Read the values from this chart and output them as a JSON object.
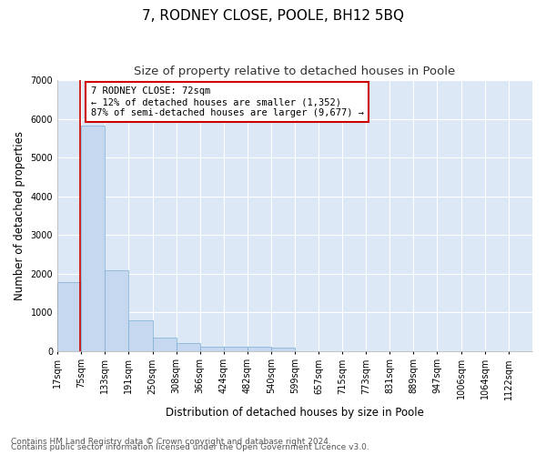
{
  "title": "7, RODNEY CLOSE, POOLE, BH12 5BQ",
  "subtitle": "Size of property relative to detached houses in Poole",
  "xlabel": "Distribution of detached houses by size in Poole",
  "ylabel": "Number of detached properties",
  "footnote1": "Contains HM Land Registry data © Crown copyright and database right 2024.",
  "footnote2": "Contains public sector information licensed under the Open Government Licence v3.0.",
  "property_size": 72,
  "annotation_line1": "7 RODNEY CLOSE: 72sqm",
  "annotation_line2": "← 12% of detached houses are smaller (1,352)",
  "annotation_line3": "87% of semi-detached houses are larger (9,677) →",
  "bar_color": "#c5d8f0",
  "bar_edge_color": "#7aafd4",
  "annotation_box_color": "#ffffff",
  "annotation_box_edge_color": "#cc0000",
  "vline_color": "#cc0000",
  "bin_edges": [
    17,
    75,
    133,
    191,
    250,
    308,
    366,
    424,
    482,
    540,
    599,
    657,
    715,
    773,
    831,
    889,
    947,
    1006,
    1064,
    1122,
    1180
  ],
  "bar_heights": [
    1780,
    5830,
    2080,
    800,
    340,
    190,
    115,
    100,
    95,
    75,
    0,
    0,
    0,
    0,
    0,
    0,
    0,
    0,
    0,
    0
  ],
  "ylim": [
    0,
    7000
  ],
  "yticks": [
    0,
    1000,
    2000,
    3000,
    4000,
    5000,
    6000,
    7000
  ],
  "figure_bg": "#ffffff",
  "plot_bg": "#dce8f5",
  "grid_color": "#ffffff",
  "title_fontsize": 11,
  "subtitle_fontsize": 9.5,
  "axis_label_fontsize": 8.5,
  "tick_fontsize": 7,
  "annotation_fontsize": 7.5,
  "footnote_fontsize": 6.5
}
